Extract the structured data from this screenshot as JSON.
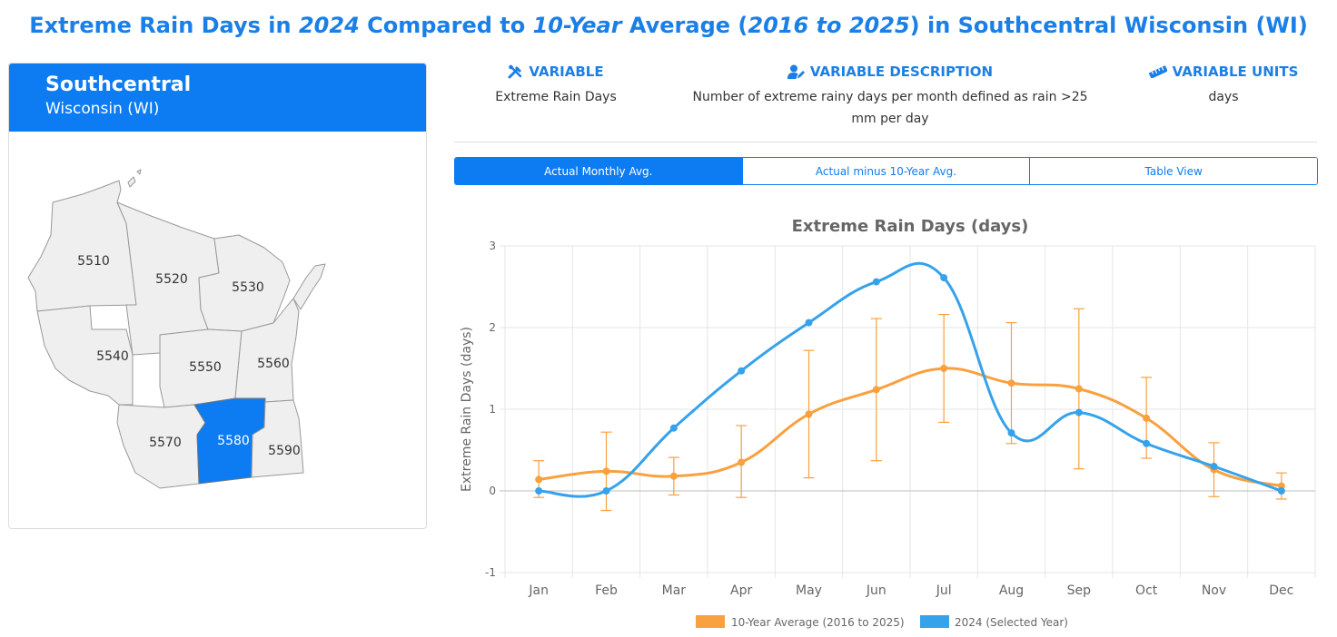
{
  "title": {
    "p1": "Extreme Rain Days in ",
    "year": "2024",
    "p2": " Compared to ",
    "decade": "10-Year",
    "p3": " Average (",
    "range": "2016 to 2025",
    "p4": ") in Southcentral Wisconsin (WI)"
  },
  "region": {
    "name": "Southcentral",
    "state": "Wisconsin (WI)",
    "divisions": [
      "5510",
      "5520",
      "5530",
      "5540",
      "5550",
      "5560",
      "5570",
      "5580",
      "5590"
    ],
    "selected": "5580"
  },
  "info": {
    "variable_label": "VARIABLE",
    "variable_value": "Extreme Rain Days",
    "description_label": "VARIABLE DESCRIPTION",
    "description_line1": "Number of extreme rainy days per month defined as rain >25",
    "description_line2": "mm per day",
    "units_label": "VARIABLE UNITS",
    "units_value": "days"
  },
  "tabs": [
    "Actual Monthly Avg.",
    "Actual minus 10-Year Avg.",
    "Table View"
  ],
  "colors": {
    "accent": "#0d7cf2",
    "avg": "#f9a03f",
    "year": "#36a2eb",
    "map_fill": "#efefef",
    "map_stroke": "#999999"
  },
  "chart_data": {
    "type": "line",
    "title": "Extreme Rain Days (days)",
    "ylabel": "Extreme Rain Days (days)",
    "xlabel": "",
    "ylim": [
      -1,
      3
    ],
    "yticks": [
      -1,
      0,
      1,
      2,
      3
    ],
    "categories": [
      "Jan",
      "Feb",
      "Mar",
      "Apr",
      "May",
      "Jun",
      "Jul",
      "Aug",
      "Sep",
      "Oct",
      "Nov",
      "Dec"
    ],
    "series": [
      {
        "name": "10-Year Average (2016 to 2025)",
        "values": [
          0.14,
          0.24,
          0.18,
          0.35,
          0.94,
          1.24,
          1.5,
          1.32,
          1.25,
          0.89,
          0.26,
          0.06
        ],
        "err_low": [
          -0.08,
          -0.24,
          -0.05,
          -0.08,
          0.16,
          0.37,
          0.84,
          0.58,
          0.27,
          0.4,
          -0.07,
          -0.1
        ],
        "err_high": [
          0.37,
          0.72,
          0.41,
          0.8,
          1.72,
          2.11,
          2.16,
          2.06,
          2.23,
          1.39,
          0.59,
          0.22
        ]
      },
      {
        "name": "2024 (Selected Year)",
        "values": [
          0,
          0,
          0.77,
          1.47,
          2.06,
          2.56,
          2.61,
          0.71,
          0.96,
          0.58,
          0.3,
          0
        ]
      }
    ],
    "legend_position": "bottom"
  }
}
